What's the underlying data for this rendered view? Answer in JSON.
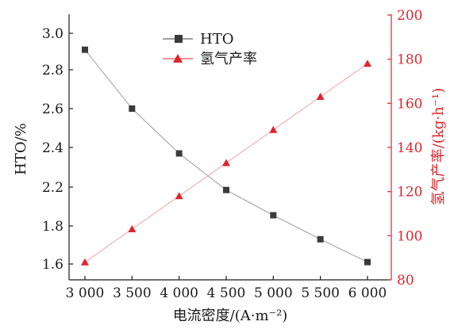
{
  "chart_data": {
    "type": "line",
    "x": [
      3000,
      3500,
      4000,
      4500,
      5000,
      5500,
      6000
    ],
    "x_tick_labels": [
      "3 000",
      "3 500",
      "4 000",
      "4 500",
      "5 000",
      "5 500",
      "6 000"
    ],
    "xlabel": "电流密度/(A·m⁻²)",
    "ylabel_left": "HTO/%",
    "ylabel_right": "氢气产率/(kg·h⁻¹)",
    "y_left_ticks": [
      "3.0",
      "2.8",
      "2.6",
      "2.4",
      "2.2",
      "1.8",
      "1.6"
    ],
    "y_right_ticks": [
      200,
      180,
      160,
      140,
      120,
      100,
      80
    ],
    "y_right_range": [
      80,
      200
    ],
    "series": [
      {
        "name": "HTO",
        "axis": "left",
        "marker": "square",
        "color": "#3a3a3a",
        "line_color": "#9a9a9a",
        "values": [
          2.91,
          2.6,
          2.37,
          2.17,
          1.91,
          1.73,
          1.61
        ]
      },
      {
        "name": "氢气产率",
        "axis": "right",
        "marker": "triangle",
        "color": "#e0242b",
        "line_color": "#f2a0a0",
        "values": [
          88,
          103,
          118,
          133,
          148,
          163,
          178
        ]
      }
    ],
    "grid": false,
    "legend_position": "top-center"
  }
}
